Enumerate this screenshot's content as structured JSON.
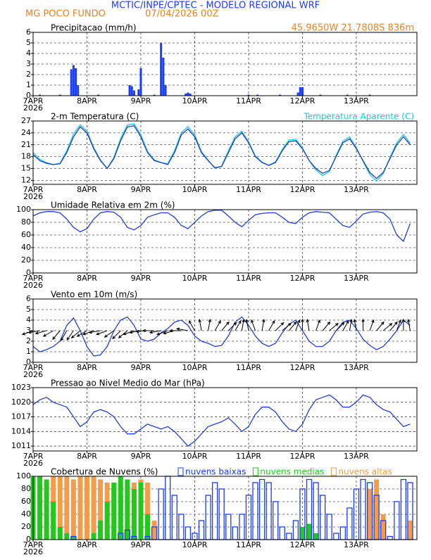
{
  "header": {
    "title": "MCTIC/INPE/CPTEC - MODELO REGIONAL WRF",
    "location": "MG POCO FUNDO",
    "date": "07/04/2026 00Z",
    "coords": "45.9650W 21.7808S 836m"
  },
  "chart_data": [
    {
      "type": "bar",
      "title": "Precipitacao (mm/h)",
      "color": "#1a3cff",
      "xlim": [
        0,
        171
      ],
      "ylim": [
        0,
        6
      ],
      "yticks": [
        0,
        1,
        2,
        3,
        4,
        5,
        6
      ],
      "xticks": [
        {
          "value": 0,
          "label": "7APR"
        },
        {
          "value": 24,
          "label": "8APR"
        },
        {
          "value": 48,
          "label": "9APR"
        },
        {
          "value": 72,
          "label": "10APR"
        },
        {
          "value": 96,
          "label": "11APR"
        },
        {
          "value": 120,
          "label": "12APR"
        },
        {
          "value": 144,
          "label": "13APR"
        }
      ],
      "x_year": "2026",
      "grid": true,
      "x": [
        3,
        12,
        17,
        18,
        19,
        20,
        29,
        43,
        44,
        45,
        47,
        48,
        54,
        57,
        58,
        59,
        68,
        69,
        70,
        96,
        100,
        110,
        118,
        119,
        120,
        128,
        140,
        150
      ],
      "values": [
        0.1,
        0.1,
        2.5,
        2.9,
        2.6,
        1.0,
        0.1,
        1.0,
        0.9,
        0.5,
        0.6,
        2.6,
        0.1,
        5.0,
        3.6,
        1.0,
        0.2,
        0.3,
        0.2,
        0.1,
        0.1,
        0.1,
        0.3,
        0.8,
        0.8,
        0.1,
        0.1,
        0.1
      ]
    },
    {
      "type": "line",
      "title": "2-m Temperatura (C)",
      "xlim": [
        0,
        171
      ],
      "ylim": [
        11,
        27
      ],
      "yticks": [
        12,
        15,
        18,
        21,
        24,
        27
      ],
      "xticks": [
        {
          "value": 0,
          "label": "7APR"
        },
        {
          "value": 24,
          "label": "8APR"
        },
        {
          "value": 48,
          "label": "9APR"
        },
        {
          "value": 72,
          "label": "10APR"
        },
        {
          "value": 96,
          "label": "11APR"
        },
        {
          "value": 120,
          "label": "12APR"
        },
        {
          "value": 144,
          "label": "13APR"
        }
      ],
      "x_year": "2026",
      "grid": true,
      "x": [
        0,
        3,
        6,
        9,
        12,
        15,
        18,
        21,
        24,
        27,
        30,
        33,
        36,
        39,
        42,
        45,
        48,
        51,
        54,
        57,
        60,
        63,
        66,
        69,
        72,
        75,
        78,
        81,
        84,
        87,
        90,
        93,
        96,
        99,
        102,
        105,
        108,
        111,
        114,
        117,
        120,
        123,
        126,
        129,
        132,
        135,
        138,
        141,
        144,
        147,
        150,
        153,
        156,
        159,
        162,
        165,
        168
      ],
      "series": [
        {
          "name": "Temperatura Aparente (C)",
          "color": "#1ec8d2",
          "values": [
            19,
            17.3,
            16.5,
            16,
            16.3,
            19.5,
            23.7,
            26,
            24.5,
            20.3,
            17.2,
            15,
            17.8,
            22.6,
            26,
            26.3,
            23.5,
            19.3,
            17.2,
            16.5,
            16.2,
            19.5,
            24,
            25.6,
            23.5,
            19.3,
            17.1,
            15,
            15.6,
            19.5,
            23,
            24.4,
            21.8,
            18.2,
            16.6,
            15.8,
            16.7,
            19.8,
            22.2,
            22.4,
            20.2,
            17,
            14.6,
            13.2,
            14.2,
            18.3,
            21.9,
            23,
            20.3,
            16.8,
            13.5,
            11.8,
            13.7,
            17.8,
            21.5,
            23.6,
            21.4
          ]
        },
        {
          "color": "#1a3cc8",
          "values": [
            18.5,
            17,
            16.3,
            16,
            16.2,
            19,
            23,
            25.5,
            24,
            20,
            17,
            15,
            17.5,
            22,
            25.5,
            25.8,
            23,
            19,
            17,
            16.5,
            16,
            19,
            23.5,
            25,
            23,
            19,
            17,
            15.2,
            15.5,
            19,
            22.5,
            24,
            21.5,
            18,
            16.5,
            15.8,
            16.5,
            19.5,
            21.8,
            22,
            20,
            17,
            15,
            13.8,
            14.5,
            18,
            21.5,
            22.5,
            20,
            17,
            14,
            12.5,
            14,
            17.5,
            21,
            23,
            21
          ]
        }
      ]
    },
    {
      "type": "line",
      "title": "Umidade Relativa em 2m (%)",
      "xlim": [
        0,
        171
      ],
      "ylim": [
        0,
        100
      ],
      "yticks": [
        0,
        20,
        40,
        60,
        80,
        100
      ],
      "xticks": [
        {
          "value": 0,
          "label": "7APR"
        },
        {
          "value": 24,
          "label": "8APR"
        },
        {
          "value": 48,
          "label": "9APR"
        },
        {
          "value": 72,
          "label": "10APR"
        },
        {
          "value": 96,
          "label": "11APR"
        },
        {
          "value": 120,
          "label": "12APR"
        },
        {
          "value": 144,
          "label": "13APR"
        }
      ],
      "x_year": "2026",
      "grid": true,
      "x": [
        0,
        3,
        6,
        9,
        12,
        15,
        18,
        21,
        24,
        27,
        30,
        33,
        36,
        39,
        42,
        45,
        48,
        51,
        54,
        57,
        60,
        63,
        66,
        69,
        72,
        75,
        78,
        81,
        84,
        87,
        90,
        93,
        96,
        99,
        102,
        105,
        108,
        111,
        114,
        117,
        120,
        123,
        126,
        129,
        132,
        135,
        138,
        141,
        144,
        147,
        150,
        153,
        156,
        159,
        162,
        165,
        168
      ],
      "series": [
        {
          "color": "#2040e0",
          "values": [
            90,
            95,
            97,
            97,
            95,
            85,
            72,
            65,
            70,
            85,
            95,
            97,
            96,
            88,
            72,
            68,
            75,
            88,
            92,
            95,
            95,
            88,
            75,
            70,
            80,
            90,
            97,
            99,
            99,
            90,
            80,
            73,
            83,
            92,
            94,
            95,
            95,
            88,
            80,
            78,
            88,
            95,
            97,
            96,
            95,
            85,
            75,
            72,
            82,
            93,
            96,
            97,
            95,
            85,
            60,
            50,
            78
          ]
        }
      ]
    },
    {
      "type": "line",
      "title": "Vento em 10m (m/s)",
      "xlim": [
        0,
        171
      ],
      "ylim": [
        0,
        6
      ],
      "yticks": [
        0,
        1,
        2,
        3,
        4,
        5,
        6
      ],
      "xticks": [
        {
          "value": 0,
          "label": "7APR"
        },
        {
          "value": 24,
          "label": "8APR"
        },
        {
          "value": 48,
          "label": "9APR"
        },
        {
          "value": 72,
          "label": "10APR"
        },
        {
          "value": 96,
          "label": "11APR"
        },
        {
          "value": 120,
          "label": "12APR"
        },
        {
          "value": 144,
          "label": "13APR"
        }
      ],
      "x_year": "2026",
      "grid": true,
      "x": [
        0,
        3,
        6,
        9,
        12,
        15,
        18,
        21,
        24,
        27,
        30,
        33,
        36,
        39,
        42,
        45,
        48,
        51,
        54,
        57,
        60,
        63,
        66,
        69,
        72,
        75,
        78,
        81,
        84,
        87,
        90,
        93,
        96,
        99,
        102,
        105,
        108,
        111,
        114,
        117,
        120,
        123,
        126,
        129,
        132,
        135,
        138,
        141,
        144,
        147,
        150,
        153,
        156,
        159,
        162,
        165,
        168
      ],
      "series": [
        {
          "color": "#2040e0",
          "values": [
            1.5,
            1,
            1.2,
            1.5,
            2,
            3.5,
            4.2,
            3,
            1.5,
            0.6,
            0.7,
            1.5,
            3,
            4,
            4.3,
            3.5,
            2.2,
            2,
            2.2,
            2.8,
            3.2,
            3.8,
            4,
            3.5,
            2.5,
            2,
            1.8,
            1.5,
            1.6,
            2.5,
            3.8,
            4.3,
            3.5,
            2.5,
            1.8,
            1.5,
            1.8,
            2.8,
            3.6,
            4,
            3,
            2,
            1.5,
            1.5,
            2,
            3,
            3.8,
            4,
            3.2,
            2.2,
            1.6,
            1.2,
            1.5,
            2.2,
            3,
            4,
            3.5
          ]
        }
      ],
      "arrow_angle": [
        200,
        190,
        195,
        210,
        230,
        240,
        235,
        220,
        210,
        200,
        190,
        200,
        215,
        225,
        220,
        200,
        190,
        185,
        180,
        190,
        200,
        195,
        180,
        170,
        120,
        100,
        80,
        60,
        50,
        45,
        60,
        80,
        100,
        110,
        80,
        60,
        45,
        40,
        50,
        70,
        90,
        100,
        70,
        50,
        40,
        45,
        60,
        80,
        100,
        90,
        70,
        50,
        40,
        50,
        70,
        90,
        100
      ]
    },
    {
      "type": "line",
      "title": "Pressao ao Nivel Medio do Mar (hPa)",
      "xlim": [
        0,
        171
      ],
      "ylim": [
        1010,
        1023
      ],
      "yticks": [
        1011,
        1014,
        1017,
        1020,
        1023
      ],
      "xticks": [
        {
          "value": 0,
          "label": "7APR"
        },
        {
          "value": 24,
          "label": "8APR"
        },
        {
          "value": 48,
          "label": "9APR"
        },
        {
          "value": 72,
          "label": "10APR"
        },
        {
          "value": 96,
          "label": "11APR"
        },
        {
          "value": 120,
          "label": "12APR"
        },
        {
          "value": 144,
          "label": "13APR"
        }
      ],
      "x_year": "2026",
      "grid": true,
      "x": [
        0,
        3,
        6,
        9,
        12,
        15,
        18,
        21,
        24,
        27,
        30,
        33,
        36,
        39,
        42,
        45,
        48,
        51,
        54,
        57,
        60,
        63,
        66,
        69,
        72,
        75,
        78,
        81,
        84,
        87,
        90,
        93,
        96,
        99,
        102,
        105,
        108,
        111,
        114,
        117,
        120,
        123,
        126,
        129,
        132,
        135,
        138,
        141,
        144,
        147,
        150,
        153,
        156,
        159,
        162,
        165,
        168
      ],
      "series": [
        {
          "color": "#2040e0",
          "values": [
            1019.5,
            1020.5,
            1021,
            1020,
            1019.5,
            1019,
            1017,
            1015,
            1016,
            1018,
            1018.5,
            1018,
            1017,
            1015,
            1013.5,
            1013.5,
            1014.5,
            1015.5,
            1015,
            1014.5,
            1015,
            1014,
            1012.5,
            1011,
            1012,
            1013.5,
            1015,
            1015.5,
            1016,
            1016.8,
            1015.5,
            1014,
            1015,
            1017.5,
            1019,
            1019,
            1018,
            1016,
            1014.5,
            1014,
            1015.5,
            1018.5,
            1020.5,
            1021,
            1021.5,
            1020.5,
            1019,
            1019,
            1020,
            1021.5,
            1021,
            1019.5,
            1018.5,
            1018,
            1016.5,
            1015,
            1015.5
          ]
        }
      ]
    },
    {
      "type": "bar",
      "title": "Cobertura de Nuvens (%)",
      "xlim": [
        0,
        171
      ],
      "ylim": [
        0,
        100
      ],
      "yticks": [
        0,
        20,
        40,
        60,
        80,
        100
      ],
      "xticks": [
        {
          "value": 0,
          "label": "7APR"
        },
        {
          "value": 24,
          "label": "8APR"
        },
        {
          "value": 48,
          "label": "9APR"
        },
        {
          "value": 72,
          "label": "10APR"
        },
        {
          "value": 96,
          "label": "11APR"
        },
        {
          "value": 120,
          "label": "12APR"
        },
        {
          "value": 144,
          "label": "13APR"
        }
      ],
      "x_year": "2026",
      "grid": true,
      "x": [
        0,
        3,
        6,
        9,
        12,
        15,
        18,
        21,
        24,
        27,
        30,
        33,
        36,
        39,
        42,
        45,
        48,
        51,
        54,
        57,
        60,
        63,
        66,
        69,
        72,
        75,
        78,
        81,
        84,
        87,
        90,
        93,
        96,
        99,
        102,
        105,
        108,
        111,
        114,
        117,
        120,
        123,
        126,
        129,
        132,
        135,
        138,
        141,
        144,
        147,
        150,
        153,
        156,
        159,
        162,
        165,
        168
      ],
      "series": [
        {
          "name": "nuvens altas",
          "color": "#f39c4a",
          "filled": true,
          "values": [
            60,
            80,
            90,
            100,
            100,
            100,
            95,
            100,
            100,
            100,
            95,
            90,
            80,
            70,
            85,
            90,
            95,
            90,
            30,
            0,
            0,
            0,
            0,
            0,
            0,
            0,
            0,
            0,
            0,
            0,
            0,
            0,
            0,
            0,
            0,
            0,
            0,
            0,
            0,
            0,
            0,
            0,
            0,
            0,
            0,
            0,
            0,
            0,
            0,
            0,
            80,
            95,
            40,
            0,
            0,
            0,
            30
          ]
        },
        {
          "name": "nuvens medias",
          "color": "#22c81e",
          "filled": true,
          "values": [
            100,
            100,
            95,
            60,
            20,
            10,
            5,
            0,
            0,
            10,
            30,
            60,
            90,
            100,
            95,
            80,
            90,
            40,
            0,
            0,
            0,
            0,
            0,
            0,
            0,
            0,
            0,
            0,
            0,
            0,
            0,
            0,
            0,
            0,
            0,
            0,
            0,
            0,
            0,
            0,
            20,
            25,
            10,
            0,
            0,
            0,
            0,
            0,
            0,
            0,
            0,
            0,
            0,
            0,
            0,
            0,
            0
          ]
        },
        {
          "name": "nuvens baixas",
          "color": "#1a3cff",
          "filled": false,
          "values": [
            0,
            0,
            0,
            0,
            0,
            0,
            5,
            0,
            0,
            0,
            0,
            0,
            0,
            10,
            15,
            5,
            0,
            5,
            20,
            80,
            100,
            70,
            40,
            20,
            10,
            30,
            70,
            90,
            80,
            40,
            20,
            40,
            70,
            90,
            95,
            90,
            60,
            20,
            10,
            30,
            80,
            95,
            90,
            70,
            40,
            10,
            20,
            50,
            80,
            95,
            90,
            70,
            30,
            5,
            60,
            95,
            90
          ]
        }
      ]
    }
  ]
}
